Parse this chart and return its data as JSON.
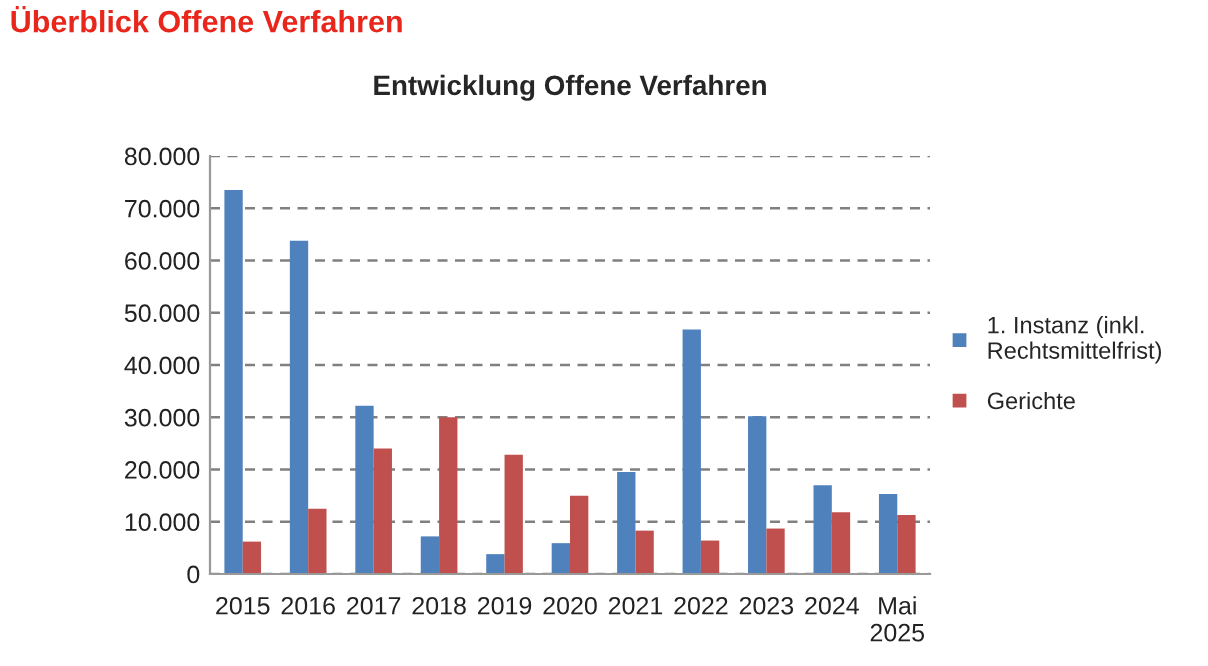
{
  "chart_data": {
    "type": "bar",
    "title": "Überblick Offene Verfahren",
    "subtitle": "Entwicklung Offene Verfahren",
    "categories": [
      "2015",
      "2016",
      "2017",
      "2018",
      "2019",
      "2020",
      "2021",
      "2022",
      "2023",
      "2024",
      "Mai\n2025"
    ],
    "series": [
      {
        "name": "1. Instanz (inkl.\nRechtsmittelfrist)",
        "color": "#4f81bd",
        "values": [
          73500,
          63800,
          32200,
          7200,
          3800,
          5900,
          19500,
          46800,
          30200,
          17000,
          15300
        ]
      },
      {
        "name": "Gerichte",
        "color": "#c0504d",
        "values": [
          6200,
          12500,
          24000,
          30000,
          22800,
          15000,
          8300,
          6400,
          8700,
          11800,
          11300
        ]
      }
    ],
    "ylim": [
      0,
      80000
    ],
    "yticks": [
      0,
      {
        "value": 10000,
        "label": "10.000"
      },
      {
        "value": 20000,
        "label": "20.000"
      },
      {
        "value": 30000,
        "label": "30.000"
      },
      {
        "value": 40000,
        "label": "40.000"
      },
      {
        "value": 50000,
        "label": "50.000"
      },
      {
        "value": 60000,
        "label": "60.000"
      },
      {
        "value": 70000,
        "label": "70.000"
      },
      {
        "value": 80000,
        "label": "80.000"
      }
    ],
    "grid": "y",
    "legend": "right"
  }
}
